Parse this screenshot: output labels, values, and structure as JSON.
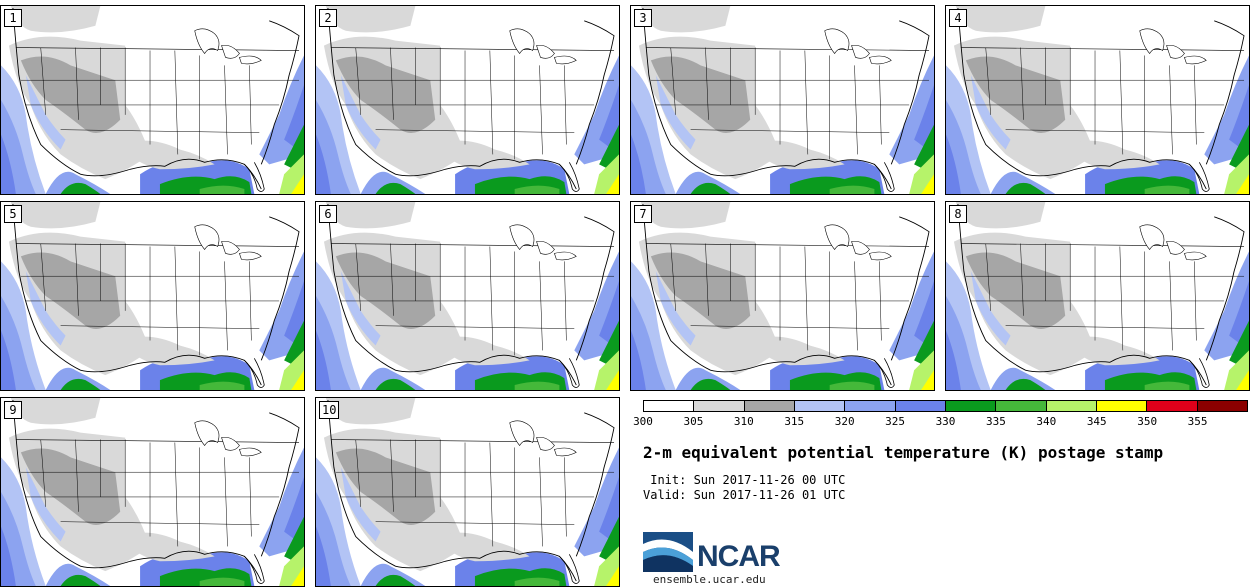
{
  "panels": [
    "1",
    "2",
    "3",
    "4",
    "5",
    "6",
    "7",
    "8",
    "9",
    "10"
  ],
  "colorbar": {
    "ticks": [
      "300",
      "305",
      "310",
      "315",
      "320",
      "325",
      "330",
      "335",
      "340",
      "345",
      "350",
      "355"
    ],
    "colors": [
      "#ffffff",
      "#d9d9d9",
      "#a6a6a6",
      "#b3c4f5",
      "#8ca3f0",
      "#6b82ea",
      "#0a9a1e",
      "#45b83a",
      "#b6f36a",
      "#ffff00",
      "#e0001a",
      "#8b0000"
    ]
  },
  "title": "2-m equivalent potential temperature (K) postage stamp",
  "init_line": " Init: Sun 2017-11-26 00 UTC",
  "valid_line": "Valid: Sun 2017-11-26 01 UTC",
  "logo_text": "NCAR",
  "site": "ensemble.ucar.edu"
}
